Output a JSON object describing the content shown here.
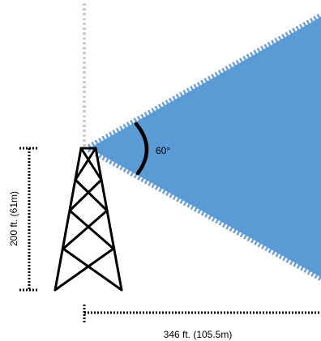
{
  "labels": {
    "angle": "60°",
    "height": "200 ft. (61m)",
    "distance": "346 ft. (105.5m)"
  },
  "colors": {
    "coverage_fill": "#5b9bd5",
    "dotted_edge": "#6fa0d8",
    "vertical_dashes": "#bfbfbf",
    "ink": "#000000"
  }
}
